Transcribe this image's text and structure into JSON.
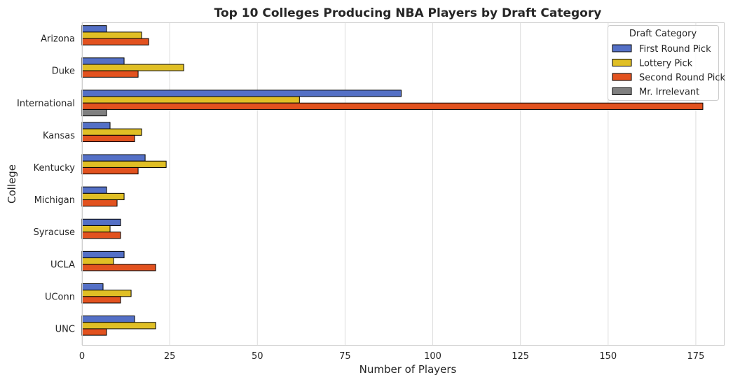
{
  "chart_data": {
    "type": "bar",
    "orientation": "horizontal",
    "title": "Top 10 Colleges Producing NBA Players by Draft Category",
    "xlabel": "Number of Players",
    "ylabel": "College",
    "xlim": [
      0,
      183
    ],
    "xticks": [
      0,
      25,
      50,
      75,
      100,
      125,
      150,
      175
    ],
    "grid": "vertical",
    "legend_title": "Draft Category",
    "legend_position": "top-right",
    "categories": [
      "Arizona",
      "Duke",
      "International",
      "Kansas",
      "Kentucky",
      "Michigan",
      "Syracuse",
      "UCLA",
      "UConn",
      "UNC"
    ],
    "series": [
      {
        "name": "First Round Pick",
        "color": "#5470c6",
        "values": [
          7,
          12,
          91,
          8,
          18,
          7,
          11,
          12,
          6,
          15
        ]
      },
      {
        "name": "Lottery Pick",
        "color": "#e0bf25",
        "values": [
          17,
          29,
          62,
          17,
          24,
          12,
          8,
          9,
          14,
          21
        ]
      },
      {
        "name": "Second Round Pick",
        "color": "#e2521f",
        "values": [
          19,
          16,
          177,
          15,
          16,
          10,
          11,
          21,
          11,
          7
        ]
      },
      {
        "name": "Mr. Irrelevant",
        "color": "#808080",
        "values": [
          null,
          null,
          7,
          null,
          null,
          null,
          null,
          null,
          null,
          null
        ]
      }
    ]
  }
}
